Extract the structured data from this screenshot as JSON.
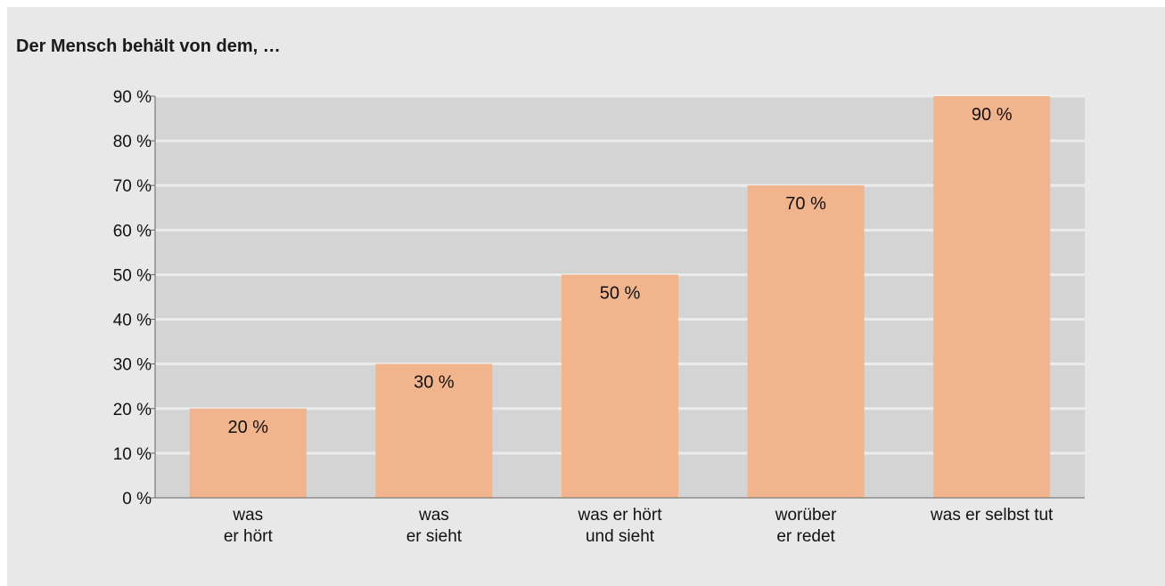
{
  "title": "Der Mensch behält von dem, …",
  "chart_data": {
    "type": "bar",
    "title": "Der Mensch behält von dem, …",
    "xlabel": "",
    "ylabel": "",
    "ylim": [
      0,
      90
    ],
    "y_ticks": [
      "0 %",
      "10 %",
      "20 %",
      "30 %",
      "40 %",
      "50 %",
      "60 %",
      "70 %",
      "80 %",
      "90 %"
    ],
    "categories": [
      [
        "was",
        "er hört"
      ],
      [
        "was",
        "er sieht"
      ],
      [
        "was er hört",
        "und sieht"
      ],
      [
        "worüber",
        "er redet"
      ],
      [
        "was er selbst tut"
      ]
    ],
    "values": [
      20,
      30,
      50,
      70,
      90
    ],
    "data_labels": [
      "20 %",
      "30 %",
      "50 %",
      "70 %",
      "90 %"
    ],
    "grid": true,
    "colors": {
      "bar": "#f2b48c",
      "plot_background": "#d4d4d4",
      "gridline": "#ececec",
      "panel_background": "#e8e8e8",
      "axis": "#666666"
    }
  }
}
